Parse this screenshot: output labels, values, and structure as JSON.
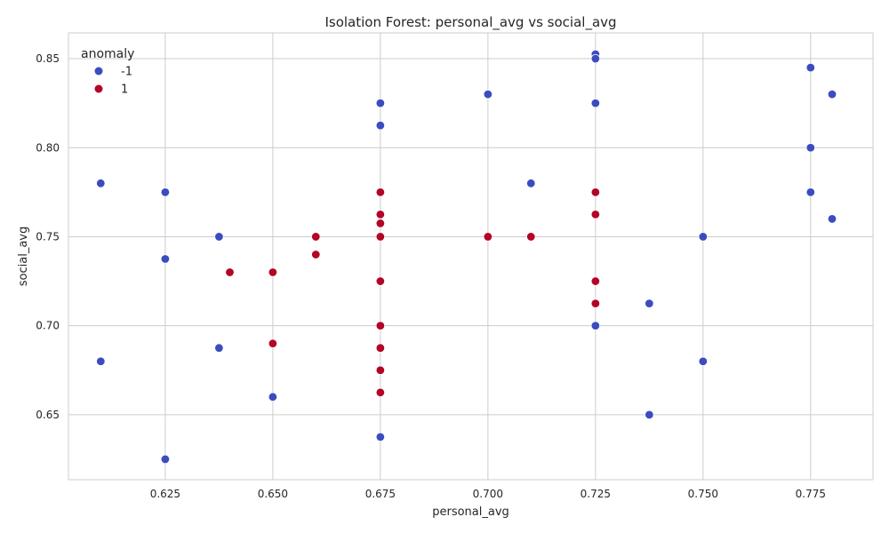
{
  "chart_data": {
    "type": "scatter",
    "title": "Isolation Forest: personal_avg vs social_avg",
    "xlabel": "personal_avg",
    "ylabel": "social_avg",
    "xlim": [
      0.6025,
      0.7895
    ],
    "ylim": [
      0.6135,
      0.8645
    ],
    "xticks": [
      0.625,
      0.65,
      0.675,
      0.7,
      0.725,
      0.75,
      0.775
    ],
    "xtick_labels": [
      "0.625",
      "0.650",
      "0.675",
      "0.700",
      "0.725",
      "0.750",
      "0.775"
    ],
    "yticks": [
      0.65,
      0.7,
      0.75,
      0.8,
      0.85
    ],
    "ytick_labels": [
      "0.65",
      "0.70",
      "0.75",
      "0.80",
      "0.85"
    ],
    "grid": true,
    "legend": {
      "title": "anomaly",
      "placement": "top-left",
      "entries": [
        {
          "label": "-1",
          "color": "#3b4cc0"
        },
        {
          "label": "1",
          "color": "#b40426"
        }
      ]
    },
    "series": [
      {
        "name": "-1",
        "color": "#3b4cc0",
        "points": [
          [
            0.61,
            0.78
          ],
          [
            0.61,
            0.68
          ],
          [
            0.625,
            0.775
          ],
          [
            0.625,
            0.7375
          ],
          [
            0.625,
            0.625
          ],
          [
            0.6375,
            0.75
          ],
          [
            0.6375,
            0.6875
          ],
          [
            0.65,
            0.66
          ],
          [
            0.675,
            0.825
          ],
          [
            0.675,
            0.8125
          ],
          [
            0.675,
            0.6375
          ],
          [
            0.7,
            0.83
          ],
          [
            0.71,
            0.78
          ],
          [
            0.725,
            0.8525
          ],
          [
            0.725,
            0.85
          ],
          [
            0.725,
            0.825
          ],
          [
            0.725,
            0.7
          ],
          [
            0.7375,
            0.7125
          ],
          [
            0.7375,
            0.65
          ],
          [
            0.75,
            0.75
          ],
          [
            0.75,
            0.68
          ],
          [
            0.775,
            0.845
          ],
          [
            0.775,
            0.8
          ],
          [
            0.775,
            0.775
          ],
          [
            0.78,
            0.83
          ],
          [
            0.78,
            0.76
          ]
        ]
      },
      {
        "name": "1",
        "color": "#b40426",
        "points": [
          [
            0.64,
            0.73
          ],
          [
            0.65,
            0.73
          ],
          [
            0.65,
            0.69
          ],
          [
            0.66,
            0.75
          ],
          [
            0.66,
            0.74
          ],
          [
            0.675,
            0.775
          ],
          [
            0.675,
            0.7625
          ],
          [
            0.675,
            0.7575
          ],
          [
            0.675,
            0.75
          ],
          [
            0.675,
            0.725
          ],
          [
            0.675,
            0.7
          ],
          [
            0.675,
            0.6875
          ],
          [
            0.675,
            0.675
          ],
          [
            0.675,
            0.6625
          ],
          [
            0.7,
            0.75
          ],
          [
            0.71,
            0.75
          ],
          [
            0.725,
            0.775
          ],
          [
            0.725,
            0.7625
          ],
          [
            0.725,
            0.725
          ],
          [
            0.725,
            0.7125
          ]
        ]
      }
    ]
  }
}
